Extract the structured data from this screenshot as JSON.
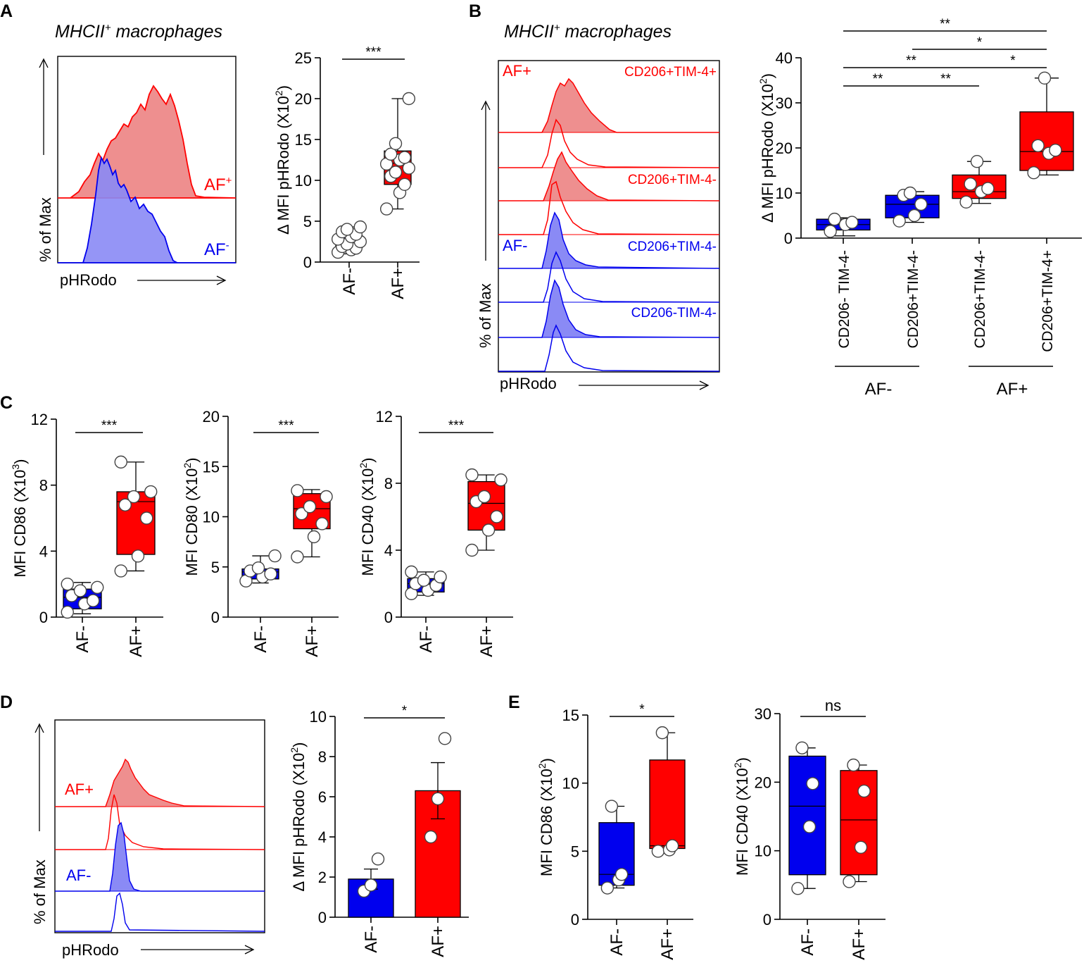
{
  "colors": {
    "blue": "#0000ee",
    "red": "#ff0000",
    "blue_fill": "#8a8af5",
    "red_fill": "#ee8f8f",
    "blue_box": "#0000ee",
    "red_box": "#ff0000"
  },
  "panels": {
    "A": {
      "label": "A",
      "title": "MHCII",
      "title_sup": "+",
      "title_rest": " macrophages",
      "hist_ylabel": "% of Max",
      "hist_xlabel": "pHRodo",
      "af_pos": "AF",
      "af_pos_sup": "+",
      "af_neg": "AF",
      "af_neg_sup": "-"
    },
    "B": {
      "label": "B",
      "title": "MHCII",
      "title_sup": "+",
      "title_rest": " macrophages",
      "hist_ylabel": "% of Max",
      "hist_xlabel": "pHRodo",
      "af_pos": "AF+",
      "af_neg": "AF-",
      "track_labels": [
        "CD206+TIM-4+",
        "CD206+TIM-4-",
        "CD206+TIM-4-",
        "CD206-TIM-4-"
      ],
      "group_af_neg": "AF-",
      "group_af_pos": "AF+"
    },
    "C": {
      "label": "C"
    },
    "D": {
      "label": "D",
      "hist_ylabel": "% of Max",
      "hist_xlabel": "pHRodo",
      "af_pos": "AF+",
      "af_neg": "AF-"
    },
    "E": {
      "label": "E"
    }
  },
  "chart_data": [
    {
      "id": "A2",
      "type": "box",
      "title": "",
      "ylabel": "Δ MFI pHRodo (X10",
      "ylabel_sup": "2",
      "ylabel_end": ")",
      "ylim": [
        0,
        25
      ],
      "yticks": [
        0,
        5,
        10,
        15,
        20,
        25
      ],
      "categories": [
        "AF-",
        "AF+"
      ],
      "boxes": [
        {
          "q1": 1.8,
          "median": 2.4,
          "q3": 3.2,
          "min": 1.0,
          "max": 4.3,
          "points": [
            1.2,
            1.5,
            1.7,
            1.9,
            2.2,
            2.5,
            2.8,
            3.1,
            3.4,
            3.7,
            4.0,
            4.3
          ]
        },
        {
          "q1": 9.5,
          "median": 12.1,
          "q3": 13.6,
          "min": 6.5,
          "max": 20.0,
          "points": [
            6.5,
            8.5,
            9.5,
            10.5,
            11.0,
            11.5,
            12.0,
            12.5,
            12.8,
            13.2,
            14.5,
            20.0
          ]
        }
      ],
      "significance": [
        {
          "from": 0,
          "to": 1,
          "text": "***"
        }
      ]
    },
    {
      "id": "B2",
      "type": "box",
      "ylabel": "Δ MFI pHRodo (X10",
      "ylabel_sup": "2",
      "ylabel_end": ")",
      "ylim": [
        0,
        40
      ],
      "yticks": [
        0,
        10,
        20,
        30,
        40
      ],
      "categories": [
        "CD206- TIM-4-",
        "CD206+TIM-4-",
        "CD206+TIM-4-",
        "CD206+TIM-4+"
      ],
      "boxes": [
        {
          "q1": 1.8,
          "median": 3.0,
          "q3": 4.2,
          "min": 0.5,
          "max": 4.5,
          "points": [
            1.5,
            3.0,
            3.5,
            4.2
          ]
        },
        {
          "q1": 4.5,
          "median": 7.5,
          "q3": 9.5,
          "min": 3.5,
          "max": 10.3,
          "points": [
            3.8,
            5.0,
            7.5,
            9.5,
            10.0
          ]
        },
        {
          "q1": 8.8,
          "median": 10.3,
          "q3": 14.0,
          "min": 7.7,
          "max": 17.0,
          "points": [
            8.0,
            10.3,
            11.0,
            12.0,
            17.0
          ]
        },
        {
          "q1": 15.0,
          "median": 19.2,
          "q3": 28.0,
          "min": 14.0,
          "max": 35.5,
          "points": [
            14.5,
            18.8,
            19.5,
            20.5,
            35.5
          ]
        }
      ],
      "significance": [
        {
          "from": 0,
          "to": 1,
          "level": 1,
          "text": "**"
        },
        {
          "from": 1,
          "to": 2,
          "level": 1,
          "text": "**"
        },
        {
          "from": 2,
          "to": 3,
          "level": 2,
          "text": "*"
        },
        {
          "from": 0,
          "to": 2,
          "level": 2,
          "text": "**"
        },
        {
          "from": 1,
          "to": 3,
          "level": 3,
          "text": "*"
        },
        {
          "from": 0,
          "to": 3,
          "level": 4,
          "text": "**"
        }
      ]
    },
    {
      "id": "C1",
      "type": "box",
      "ylabel": "MFI CD86 (X10",
      "ylabel_sup": "3",
      "ylabel_end": ")",
      "ylim": [
        0,
        12
      ],
      "yticks": [
        0,
        4,
        8,
        12
      ],
      "categories": [
        "AF-",
        "AF+"
      ],
      "boxes": [
        {
          "q1": 0.5,
          "median": 1.2,
          "q3": 1.7,
          "min": 0.2,
          "max": 2.1,
          "points": [
            0.3,
            0.8,
            1.0,
            1.3,
            1.6,
            1.8,
            2.0
          ]
        },
        {
          "q1": 3.8,
          "median": 7.0,
          "q3": 7.6,
          "min": 2.8,
          "max": 9.4,
          "points": [
            2.8,
            3.7,
            6.0,
            6.8,
            7.3,
            7.6,
            9.4
          ]
        }
      ],
      "significance": [
        {
          "from": 0,
          "to": 1,
          "text": "***"
        }
      ]
    },
    {
      "id": "C2",
      "type": "box",
      "ylabel": "MFI CD80 (X10",
      "ylabel_sup": "2",
      "ylabel_end": ")",
      "ylim": [
        0,
        20
      ],
      "yticks": [
        0,
        5,
        10,
        15,
        20
      ],
      "categories": [
        "AF-",
        "AF+"
      ],
      "boxes": [
        {
          "q1": 3.8,
          "median": 4.5,
          "q3": 4.8,
          "min": 3.4,
          "max": 6.1,
          "points": [
            3.6,
            4.0,
            4.3,
            4.6,
            4.9,
            6.1
          ]
        },
        {
          "q1": 8.8,
          "median": 10.8,
          "q3": 12.3,
          "min": 6.0,
          "max": 12.7,
          "points": [
            6.0,
            8.0,
            9.3,
            10.3,
            11.0,
            12.0,
            12.6
          ]
        }
      ],
      "significance": [
        {
          "from": 0,
          "to": 1,
          "text": "***"
        }
      ]
    },
    {
      "id": "C3",
      "type": "box",
      "ylabel": "MFI CD40 (X10",
      "ylabel_sup": "2",
      "ylabel_end": ")",
      "ylim": [
        0,
        12
      ],
      "yticks": [
        0,
        4,
        8,
        12
      ],
      "categories": [
        "AF-",
        "AF+"
      ],
      "boxes": [
        {
          "q1": 1.5,
          "median": 2.0,
          "q3": 2.3,
          "min": 1.3,
          "max": 2.7,
          "points": [
            1.4,
            1.6,
            1.9,
            2.0,
            2.2,
            2.4,
            2.7
          ]
        },
        {
          "q1": 5.2,
          "median": 6.8,
          "q3": 8.1,
          "min": 4.0,
          "max": 8.5,
          "points": [
            4.0,
            5.2,
            6.0,
            6.9,
            7.2,
            8.2,
            8.5
          ]
        }
      ],
      "significance": [
        {
          "from": 0,
          "to": 1,
          "text": "***"
        }
      ]
    },
    {
      "id": "D2",
      "type": "bar",
      "ylabel": "Δ MFI pHRodo (X10",
      "ylabel_sup": "2",
      "ylabel_end": ")",
      "ylim": [
        0,
        10
      ],
      "yticks": [
        0,
        2,
        4,
        6,
        8,
        10
      ],
      "categories": [
        "AF-",
        "AF+"
      ],
      "bars": [
        {
          "mean": 1.9,
          "sem": 0.5,
          "points": [
            1.3,
            1.6,
            2.9
          ]
        },
        {
          "mean": 6.3,
          "sem": 1.4,
          "points": [
            4.0,
            5.9,
            8.9
          ]
        }
      ],
      "significance": [
        {
          "from": 0,
          "to": 1,
          "text": "*"
        }
      ]
    },
    {
      "id": "E1",
      "type": "box",
      "ylabel": "MFI CD86 (X10",
      "ylabel_sup": "2",
      "ylabel_end": ")",
      "ylim": [
        0,
        15
      ],
      "yticks": [
        0,
        5,
        10,
        15
      ],
      "categories": [
        "AF-",
        "AF+"
      ],
      "boxes": [
        {
          "q1": 2.5,
          "median": 3.3,
          "q3": 7.1,
          "min": 2.3,
          "max": 8.3,
          "points": [
            2.3,
            2.9,
            3.3,
            8.3
          ]
        },
        {
          "q1": 5.2,
          "median": 5.4,
          "q3": 11.7,
          "min": 5.0,
          "max": 13.7,
          "points": [
            5.0,
            5.1,
            5.4,
            13.7
          ]
        }
      ],
      "significance": [
        {
          "from": 0,
          "to": 1,
          "text": "*"
        }
      ]
    },
    {
      "id": "E2",
      "type": "box",
      "ylabel": "MFI CD40 (X10",
      "ylabel_sup": "2",
      "ylabel_end": ")",
      "ylim": [
        0,
        30
      ],
      "yticks": [
        0,
        10,
        20,
        30
      ],
      "categories": [
        "AF-",
        "AF+"
      ],
      "boxes": [
        {
          "q1": 6.5,
          "median": 16.5,
          "q3": 23.8,
          "min": 4.5,
          "max": 25.0,
          "points": [
            4.5,
            13.5,
            19.8,
            25.0
          ]
        },
        {
          "q1": 6.5,
          "median": 14.5,
          "q3": 21.7,
          "min": 5.5,
          "max": 22.5,
          "points": [
            5.5,
            10.5,
            18.7,
            22.5
          ]
        }
      ],
      "significance": [
        {
          "from": 0,
          "to": 1,
          "text": "ns"
        }
      ]
    }
  ]
}
